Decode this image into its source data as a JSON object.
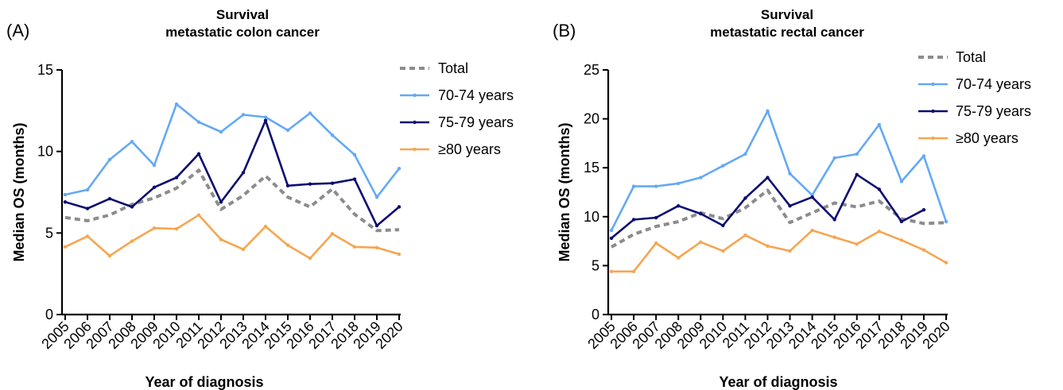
{
  "panels": [
    {
      "panel_label": "(A)",
      "title_line1": "Survival",
      "title_line2": "metastatic colon cancer"
    },
    {
      "panel_label": "(B)",
      "title_line1": "Survival",
      "title_line2": "metastatic rectal cancer"
    }
  ],
  "chart_data": [
    {
      "type": "line",
      "title": "Survival metastatic colon cancer",
      "xlabel": "Year of diagnosis",
      "ylabel": "Median OS (months)",
      "ylim": [
        0,
        15
      ],
      "yticks": [
        0,
        5,
        10,
        15
      ],
      "legend_position": "top-right",
      "categories": [
        "2005",
        "2006",
        "2007",
        "2008",
        "2009",
        "2010",
        "2011",
        "2012",
        "2013",
        "2014",
        "2015",
        "2016",
        "2017",
        "2018",
        "2019",
        "2020"
      ],
      "series": [
        {
          "name": "Total",
          "color": "#8c8c8c",
          "style": "dashed",
          "values": [
            5.95,
            5.75,
            6.1,
            6.75,
            7.15,
            7.75,
            8.85,
            6.45,
            7.3,
            8.5,
            7.2,
            6.6,
            7.7,
            6.15,
            5.15,
            5.2
          ]
        },
        {
          "name": "70-74 years",
          "color": "#64a9f4",
          "style": "solid",
          "values": [
            7.35,
            7.65,
            9.5,
            10.6,
            9.15,
            12.9,
            11.8,
            11.2,
            12.25,
            12.1,
            11.3,
            12.35,
            11.0,
            9.8,
            7.2,
            8.95
          ]
        },
        {
          "name": "75-79 years",
          "color": "#0c0c70",
          "style": "solid",
          "values": [
            6.9,
            6.5,
            7.1,
            6.6,
            7.8,
            8.4,
            9.85,
            6.9,
            8.7,
            11.9,
            7.9,
            8.0,
            8.05,
            8.3,
            5.45,
            6.6
          ]
        },
        {
          "name": "≥80 years",
          "color": "#f5a650",
          "style": "solid",
          "values": [
            4.15,
            4.8,
            3.6,
            4.5,
            5.3,
            5.25,
            6.1,
            4.6,
            4.0,
            5.4,
            4.25,
            3.45,
            4.95,
            4.15,
            4.1,
            3.7
          ]
        }
      ]
    },
    {
      "type": "line",
      "title": "Survival metastatic rectal cancer",
      "xlabel": "Year of diagnosis",
      "ylabel": "Median OS (months)",
      "ylim": [
        0,
        25
      ],
      "yticks": [
        0,
        5,
        10,
        15,
        20,
        25
      ],
      "legend_position": "top-right",
      "categories": [
        "2005",
        "2006",
        "2007",
        "2008",
        "2009",
        "2010",
        "2011",
        "2012",
        "2013",
        "2014",
        "2015",
        "2016",
        "2017",
        "2018",
        "2019",
        "2020"
      ],
      "series": [
        {
          "name": "Total",
          "color": "#8c8c8c",
          "style": "dashed",
          "values": [
            6.9,
            8.2,
            9.0,
            9.5,
            10.4,
            9.8,
            10.9,
            12.7,
            9.4,
            10.4,
            11.4,
            11.0,
            11.6,
            9.8,
            9.3,
            9.4
          ]
        },
        {
          "name": "70-74 years",
          "color": "#64a9f4",
          "style": "solid",
          "values": [
            8.6,
            13.1,
            13.1,
            13.4,
            14.0,
            15.2,
            16.4,
            20.8,
            14.4,
            12.2,
            16.0,
            16.4,
            19.4,
            13.6,
            16.2,
            9.5
          ]
        },
        {
          "name": "75-79 years",
          "color": "#0c0c70",
          "style": "solid",
          "values": [
            7.8,
            9.7,
            9.9,
            11.1,
            10.3,
            9.1,
            11.9,
            14.0,
            11.1,
            12.0,
            9.7,
            14.3,
            12.8,
            9.5,
            10.7,
            null
          ]
        },
        {
          "name": "≥80 years",
          "color": "#f5a650",
          "style": "solid",
          "values": [
            4.4,
            4.4,
            7.3,
            5.8,
            7.4,
            6.5,
            8.1,
            7.0,
            6.5,
            8.6,
            7.9,
            7.2,
            8.5,
            7.6,
            6.6,
            5.3
          ]
        }
      ]
    }
  ]
}
